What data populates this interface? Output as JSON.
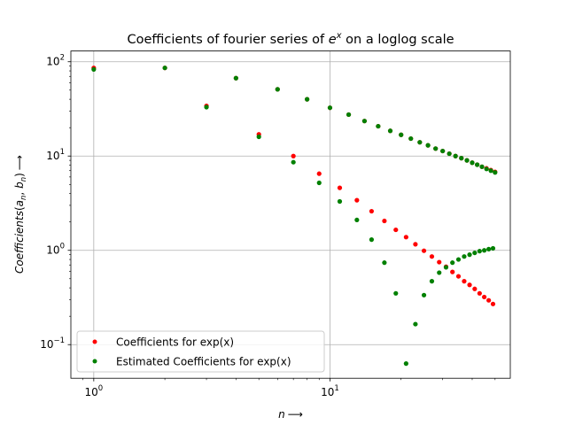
{
  "chart_data": {
    "type": "scatter",
    "title": {
      "pre": "Coefficients of fourier series of ",
      "base": "e",
      "sup": "x",
      "post": " on a loglog scale"
    },
    "xlabel": {
      "italic": "n",
      "arrow": "⟶"
    },
    "ylabel": {
      "italic": "Coefficients",
      "paren_open": "(",
      "a": "a",
      "a_sub": "n",
      "sep": ", ",
      "b": "b",
      "b_sub": "n",
      "paren_close": ")",
      "arrow": "⟶"
    },
    "x_scale": "log",
    "y_scale": "log",
    "xlim": [
      0.8,
      58
    ],
    "ylim": [
      0.044,
      130
    ],
    "x_ticks": [
      {
        "value": 1,
        "base": "10",
        "exp": "0"
      },
      {
        "value": 10,
        "base": "10",
        "exp": "1"
      }
    ],
    "y_ticks": [
      {
        "value": 0.1,
        "base": "10",
        "exp": "−1"
      },
      {
        "value": 1,
        "base": "10",
        "exp": "0"
      },
      {
        "value": 10,
        "base": "10",
        "exp": "1"
      },
      {
        "value": 100,
        "base": "10",
        "exp": "2"
      }
    ],
    "grid": true,
    "legend_position": "lower-left",
    "series": [
      {
        "name": "Coefficients for exp(x)",
        "color": "#ff0000",
        "points": [
          [
            1,
            86
          ],
          [
            2,
            86
          ],
          [
            3,
            34
          ],
          [
            4,
            67
          ],
          [
            5,
            17
          ],
          [
            6,
            51
          ],
          [
            7,
            10
          ],
          [
            8,
            40
          ],
          [
            9,
            6.5
          ],
          [
            10,
            32.5
          ],
          [
            11,
            4.6
          ],
          [
            12,
            27.5
          ],
          [
            13,
            3.4
          ],
          [
            14,
            23.5
          ],
          [
            15,
            2.6
          ],
          [
            16,
            20.7
          ],
          [
            17,
            2.05
          ],
          [
            18,
            18.5
          ],
          [
            19,
            1.65
          ],
          [
            20,
            16.8
          ],
          [
            21,
            1.38
          ],
          [
            22,
            15.3
          ],
          [
            23,
            1.16
          ],
          [
            24,
            14.0
          ],
          [
            25,
            0.99
          ],
          [
            26,
            13.0
          ],
          [
            27,
            0.86
          ],
          [
            28,
            12.0
          ],
          [
            29,
            0.75
          ],
          [
            30,
            11.3
          ],
          [
            31,
            0.67
          ],
          [
            32,
            10.6
          ],
          [
            33,
            0.59
          ],
          [
            34,
            10.0
          ],
          [
            35,
            0.53
          ],
          [
            36,
            9.5
          ],
          [
            37,
            0.47
          ],
          [
            38,
            9.0
          ],
          [
            39,
            0.43
          ],
          [
            40,
            8.5
          ],
          [
            41,
            0.39
          ],
          [
            42,
            8.1
          ],
          [
            43,
            0.35
          ],
          [
            44,
            7.7
          ],
          [
            45,
            0.32
          ],
          [
            46,
            7.4
          ],
          [
            47,
            0.295
          ],
          [
            48,
            7.1
          ],
          [
            49,
            0.27
          ],
          [
            50,
            6.8
          ]
        ]
      },
      {
        "name": "Estimated Coefficients for exp(x)",
        "color": "#008000",
        "points": [
          [
            1,
            83
          ],
          [
            2,
            86
          ],
          [
            3,
            33
          ],
          [
            4,
            67
          ],
          [
            5,
            16
          ],
          [
            6,
            51
          ],
          [
            7,
            8.6
          ],
          [
            8,
            40
          ],
          [
            9,
            5.2
          ],
          [
            10,
            32.5
          ],
          [
            11,
            3.3
          ],
          [
            12,
            27.5
          ],
          [
            13,
            2.1
          ],
          [
            14,
            23.5
          ],
          [
            15,
            1.3
          ],
          [
            16,
            20.7
          ],
          [
            17,
            0.74
          ],
          [
            18,
            18.5
          ],
          [
            19,
            0.35
          ],
          [
            20,
            16.8
          ],
          [
            21,
            0.063
          ],
          [
            22,
            15.3
          ],
          [
            23,
            0.165
          ],
          [
            24,
            14.0
          ],
          [
            25,
            0.335
          ],
          [
            26,
            13.0
          ],
          [
            27,
            0.47
          ],
          [
            28,
            12.0
          ],
          [
            29,
            0.58
          ],
          [
            30,
            11.3
          ],
          [
            31,
            0.66
          ],
          [
            32,
            10.6
          ],
          [
            33,
            0.74
          ],
          [
            34,
            10.0
          ],
          [
            35,
            0.8
          ],
          [
            36,
            9.5
          ],
          [
            37,
            0.86
          ],
          [
            38,
            9.0
          ],
          [
            39,
            0.9
          ],
          [
            40,
            8.5
          ],
          [
            41,
            0.94
          ],
          [
            42,
            8.1
          ],
          [
            43,
            0.98
          ],
          [
            44,
            7.7
          ],
          [
            45,
            1.0
          ],
          [
            46,
            7.3
          ],
          [
            47,
            1.03
          ],
          [
            48,
            7.0
          ],
          [
            49,
            1.05
          ],
          [
            50,
            6.7
          ]
        ]
      }
    ]
  }
}
